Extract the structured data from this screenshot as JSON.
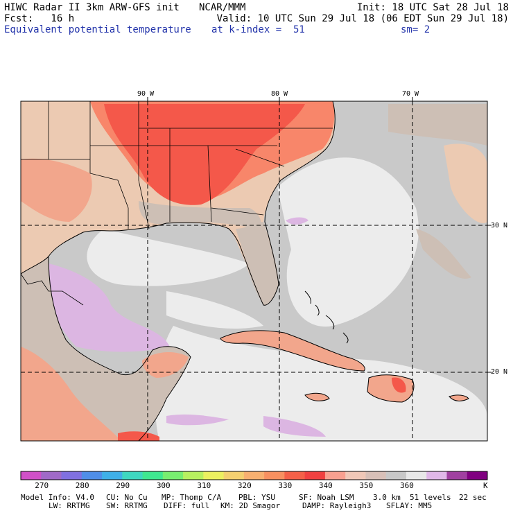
{
  "header": {
    "title": "HIWC Radar II 3km ARW-GFS init",
    "org": "NCAR/MMM",
    "init": "Init: 18 UTC Sat 28 Jul 18",
    "fcst": "Fcst:   16 h",
    "valid": "Valid: 10 UTC Sun 29 Jul 18 (06 EDT Sun 29 Jul 18)",
    "field": "Equivalent potential temperature",
    "level": "at k-index =  51",
    "smooth": "sm= 2"
  },
  "map": {
    "lon_labels": [
      "90 W",
      "80 W",
      "70 W"
    ],
    "lat_labels": [
      "30 N",
      "20 N"
    ],
    "colors": {
      "hot": "#f4584a",
      "warm": "#f8866a",
      "salmon": "#f2a68c",
      "tan": "#eccab2",
      "taupe": "#cdbfb5",
      "gray": "#c9c9c9",
      "light": "#ececec",
      "lilac": "#dcb6e2",
      "purple": "#a05ab0"
    }
  },
  "colorbar": {
    "colors": [
      "#d050c8",
      "#a06ac8",
      "#8070e0",
      "#4f8ee8",
      "#3fb0e8",
      "#3ed8c0",
      "#3fe890",
      "#78ee70",
      "#b8f060",
      "#ecf060",
      "#f4d070",
      "#f8b070",
      "#f89060",
      "#f46048",
      "#f04040",
      "#f8a090",
      "#f0c8b8",
      "#d8c0b8",
      "#c8c8c8",
      "#e8e8e8",
      "#e0b8e8",
      "#a040a0",
      "#800080"
    ],
    "tick_labels": [
      "270",
      "280",
      "290",
      "300",
      "310",
      "320",
      "330",
      "340",
      "350",
      "360"
    ],
    "units": "K"
  },
  "footer": {
    "line1": [
      "Model Info: V4.0",
      "CU: No Cu",
      "MP: Thomp C/A",
      "PBL: YSU",
      "SF: Noah LSM",
      "3.0 km",
      "51 levels",
      "22 sec"
    ],
    "line2": [
      "LW: RRTMG",
      "SW: RRTMG",
      "DIFF: full",
      "KM: 2D Smagor",
      "DAMP: Rayleigh3",
      "SFLAY: MM5"
    ]
  }
}
